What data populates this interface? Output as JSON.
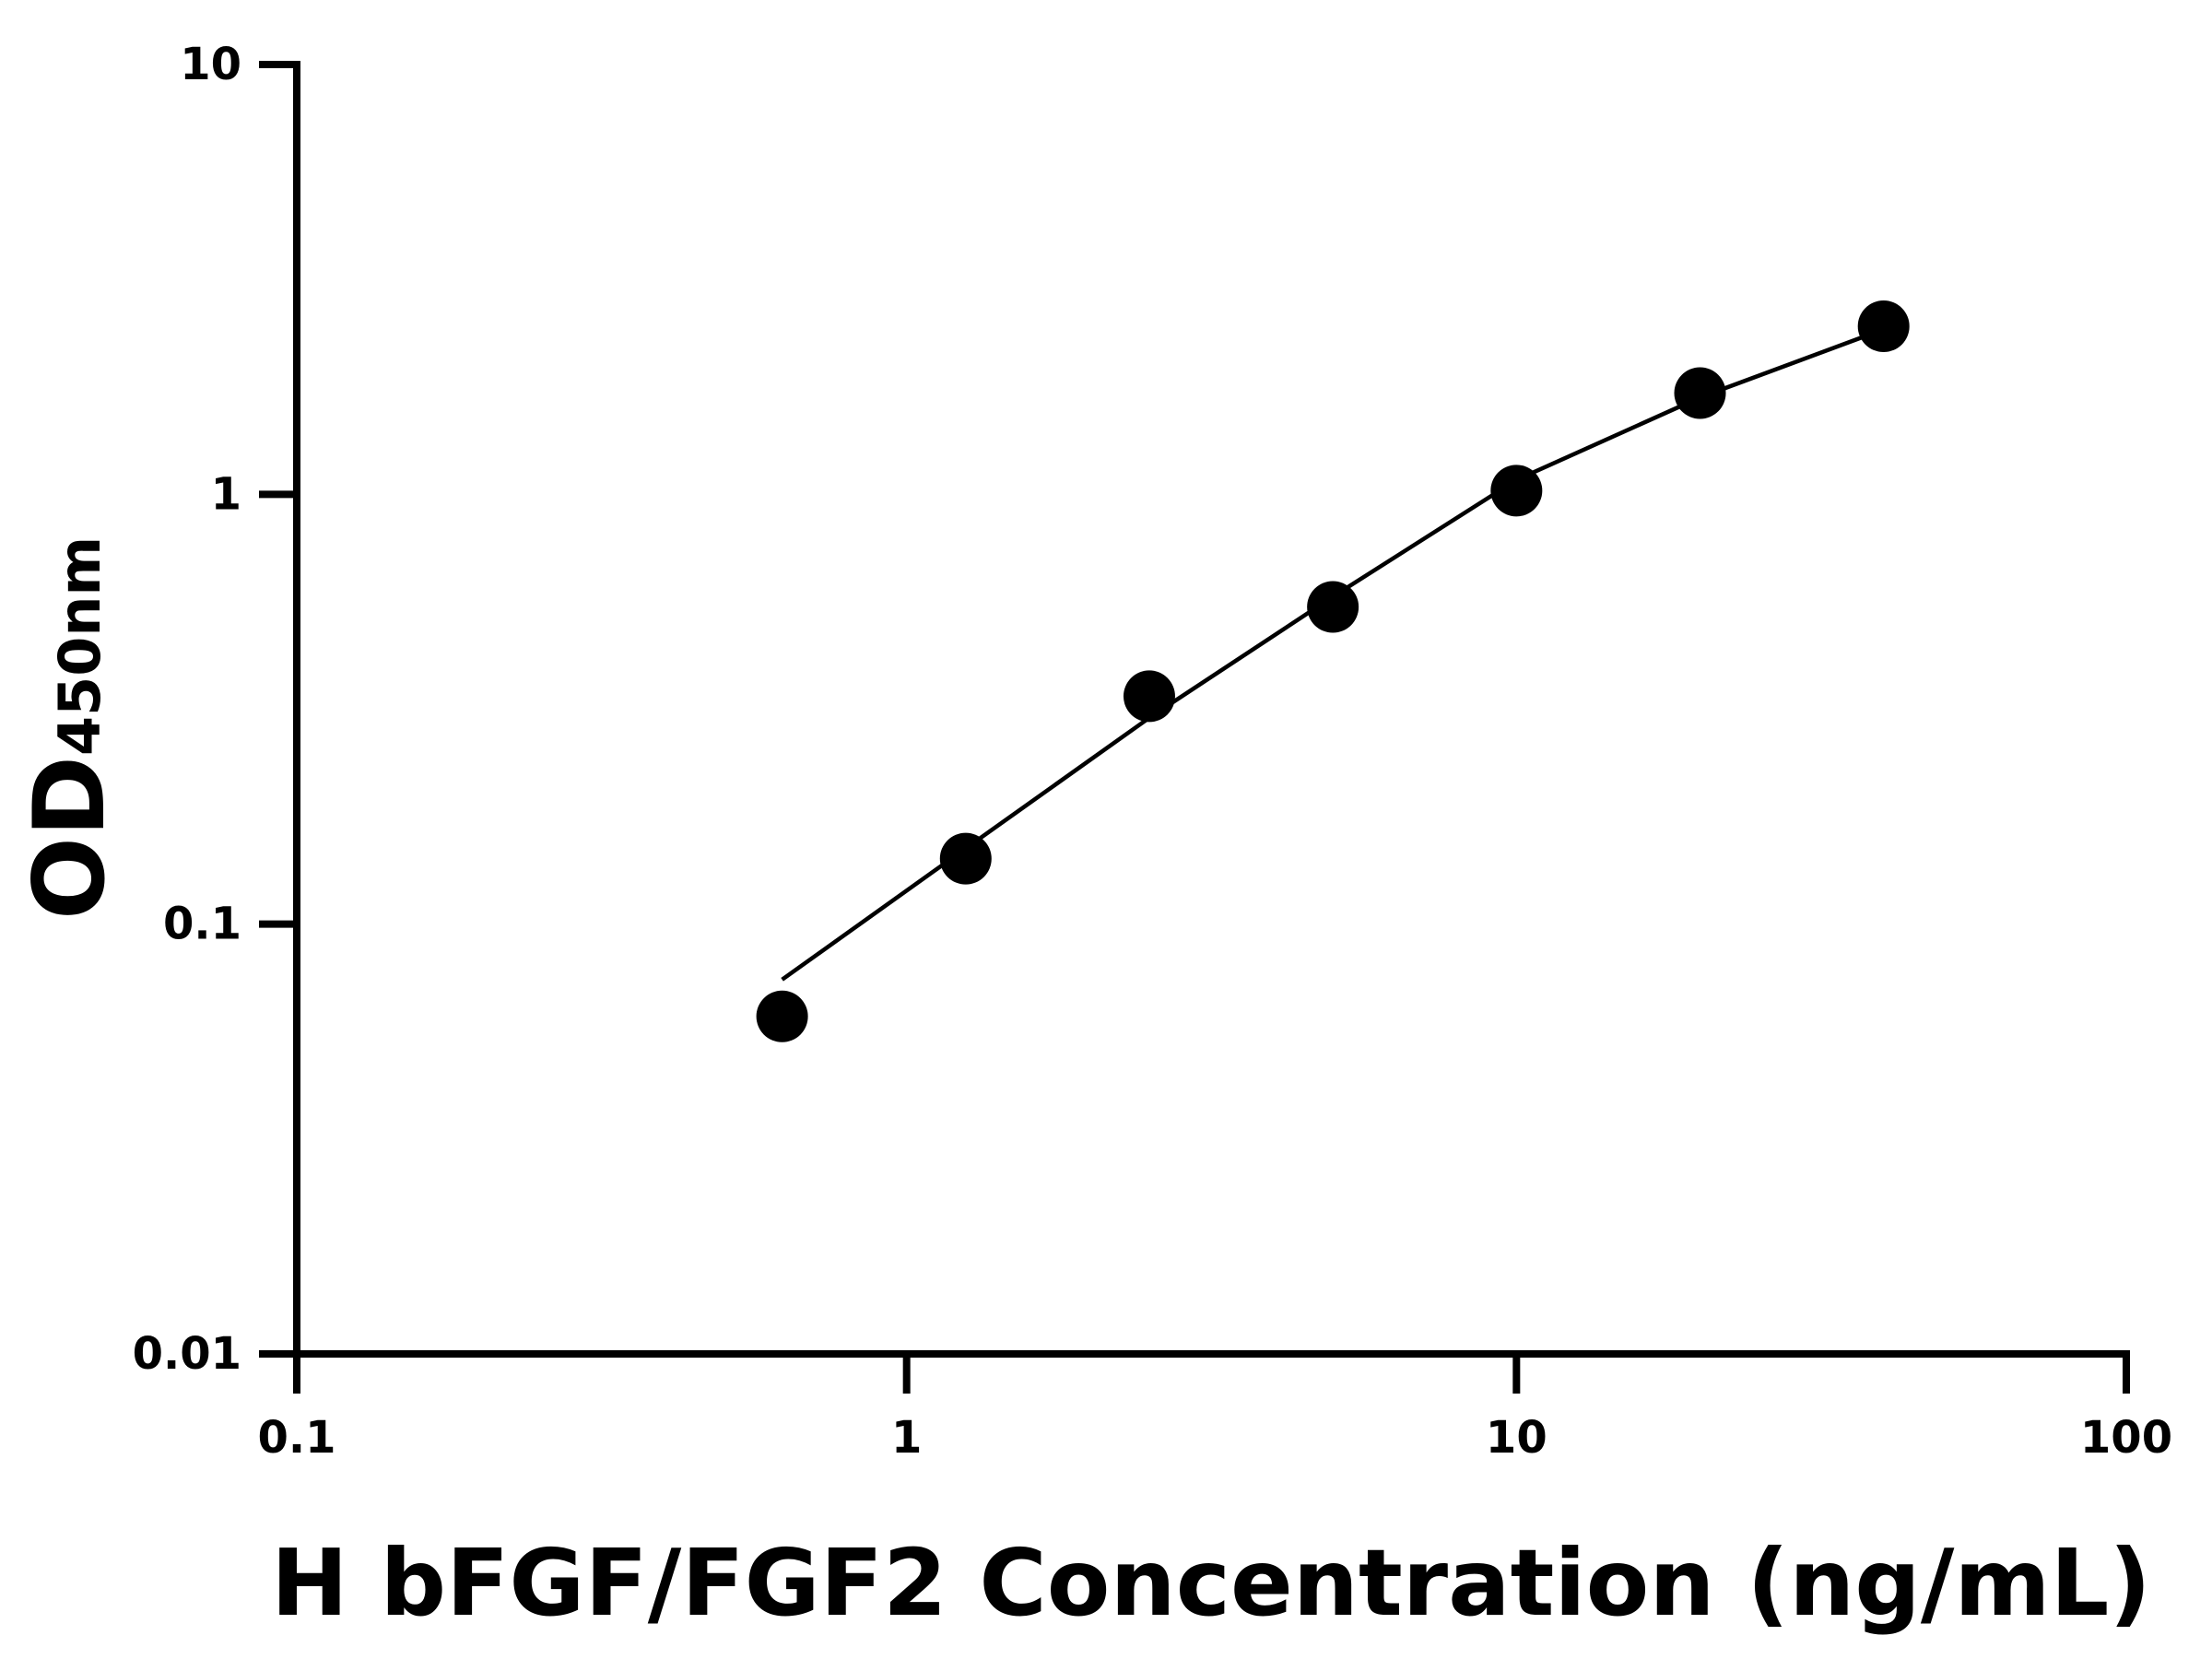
{
  "chart_data": {
    "type": "scatter",
    "xlabel": "H bFGF/FGF2 Concentration (ng/mL)",
    "ylabel": "OD",
    "ylabel_subscript": "450nm",
    "xscale": "log",
    "yscale": "log",
    "xlim": [
      0.1,
      100
    ],
    "xticks": [
      0.1,
      1,
      10,
      100
    ],
    "ylim": [
      0.01,
      10
    ],
    "yticks": [
      0.01,
      0.1,
      1,
      10
    ],
    "series": [
      {
        "type": "scatter",
        "color": "#000000",
        "x": [
          0.625,
          1.25,
          2.5,
          5,
          10,
          20,
          40
        ],
        "values": [
          0.061,
          0.142,
          0.339,
          0.547,
          1.02,
          1.72,
          2.46
        ]
      },
      {
        "type": "line",
        "color": "#000000",
        "x": [
          0.625,
          1.25,
          2.5,
          5,
          10,
          20,
          40
        ],
        "values": [
          0.0743,
          0.15,
          0.302,
          0.578,
          1.08,
          1.68,
          2.42
        ]
      }
    ]
  }
}
